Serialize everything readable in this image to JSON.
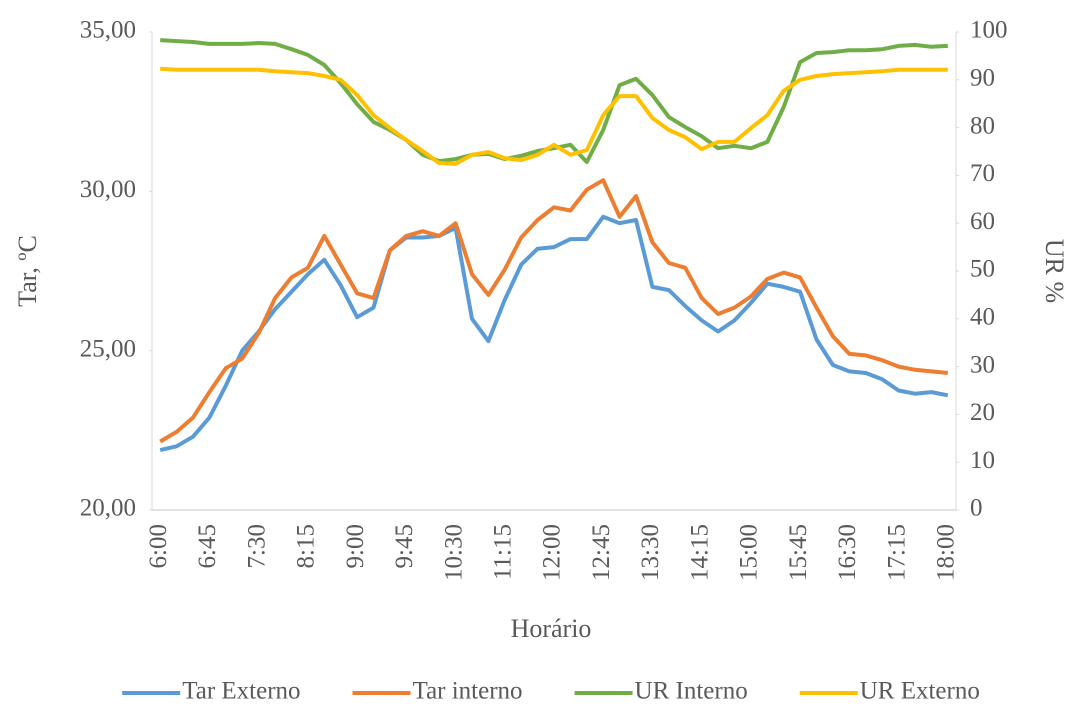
{
  "chart_data": {
    "type": "line",
    "x_label": "Horário",
    "y_label": "Tar, ºC",
    "y2_label": "UR %",
    "categories": [
      "6:00",
      null,
      null,
      "6:45",
      null,
      null,
      "7:30",
      null,
      null,
      "8:15",
      null,
      null,
      "9:00",
      null,
      null,
      "9:45",
      null,
      null,
      "10:30",
      null,
      null,
      "11:15",
      null,
      null,
      "12:00",
      null,
      null,
      "12:45",
      null,
      null,
      "13:30",
      null,
      null,
      "14:15",
      null,
      null,
      "15:00",
      null,
      null,
      "15:45",
      null,
      null,
      "16:30",
      null,
      null,
      "17:15",
      null,
      null,
      "18:00"
    ],
    "ylim": [
      20,
      35
    ],
    "yticks": [
      {
        "value": 20,
        "label": "20,00"
      },
      {
        "value": 25,
        "label": "25,00"
      },
      {
        "value": 30,
        "label": "30,00"
      },
      {
        "value": 35,
        "label": "35,00"
      }
    ],
    "y2lim": [
      0,
      100
    ],
    "y2ticks": [
      0,
      10,
      20,
      30,
      40,
      50,
      60,
      70,
      80,
      90,
      100
    ],
    "grid": false,
    "legend": "bottom",
    "series": [
      {
        "name": "Tar Externo",
        "color": "#5b9bd5",
        "values": [
          21.88,
          22.0,
          22.3,
          22.9,
          23.9,
          25.0,
          25.6,
          26.3,
          26.85,
          27.4,
          27.85,
          27.05,
          26.05,
          26.35,
          28.15,
          28.55,
          28.55,
          28.6,
          28.85,
          26.0,
          25.3,
          26.6,
          27.7,
          28.2,
          28.25,
          28.5,
          28.5,
          29.2,
          29.0,
          29.1,
          27.0,
          26.9,
          26.4,
          25.95,
          25.6,
          25.95,
          26.5,
          27.1,
          27.0,
          26.85,
          25.35,
          24.55,
          24.35,
          24.3,
          24.1,
          23.75,
          23.65,
          23.7,
          23.6
        ]
      },
      {
        "name": "Tar interno",
        "color": "#ed7d31",
        "values": [
          22.15,
          22.45,
          22.9,
          23.7,
          24.45,
          24.75,
          25.55,
          26.65,
          27.3,
          27.6,
          28.6,
          27.7,
          26.8,
          26.65,
          28.15,
          28.6,
          28.75,
          28.6,
          29.0,
          27.4,
          26.75,
          27.55,
          28.55,
          29.1,
          29.5,
          29.4,
          30.05,
          30.35,
          29.2,
          29.85,
          28.4,
          27.75,
          27.6,
          26.65,
          26.15,
          26.35,
          26.7,
          27.25,
          27.45,
          27.3,
          26.35,
          25.45,
          24.9,
          24.85,
          24.7,
          24.5,
          24.4,
          24.35,
          24.3
        ]
      },
      {
        "name": "UR Interno",
        "color": "#70ad47",
        "axis": "y2",
        "values": [
          98.3,
          98.1,
          97.9,
          97.5,
          97.5,
          97.5,
          97.7,
          97.5,
          96.4,
          95.2,
          93.1,
          89.3,
          84.9,
          81.2,
          79.5,
          77.4,
          74.3,
          73.0,
          73.4,
          74.3,
          74.5,
          73.4,
          74.1,
          75.1,
          75.7,
          76.4,
          72.8,
          79.5,
          88.9,
          90.2,
          86.8,
          82.2,
          80.1,
          78.2,
          75.7,
          76.2,
          75.7,
          77.0,
          84.3,
          93.7,
          95.6,
          95.8,
          96.2,
          96.2,
          96.4,
          97.1,
          97.3,
          96.9,
          97.1
        ]
      },
      {
        "name": "UR Externo",
        "color": "#ffc000",
        "axis": "y2",
        "values": [
          92.3,
          92.1,
          92.1,
          92.1,
          92.1,
          92.1,
          92.1,
          91.8,
          91.6,
          91.4,
          90.8,
          90.0,
          86.8,
          82.6,
          79.9,
          77.4,
          75.1,
          72.6,
          72.4,
          74.3,
          74.9,
          73.6,
          73.2,
          74.3,
          76.4,
          74.3,
          75.3,
          82.6,
          86.6,
          86.6,
          82.0,
          79.5,
          78.0,
          75.5,
          77.0,
          77.0,
          79.9,
          82.6,
          87.7,
          90.0,
          90.8,
          91.2,
          91.4,
          91.6,
          91.8,
          92.1,
          92.1,
          92.1,
          92.1
        ]
      }
    ]
  }
}
